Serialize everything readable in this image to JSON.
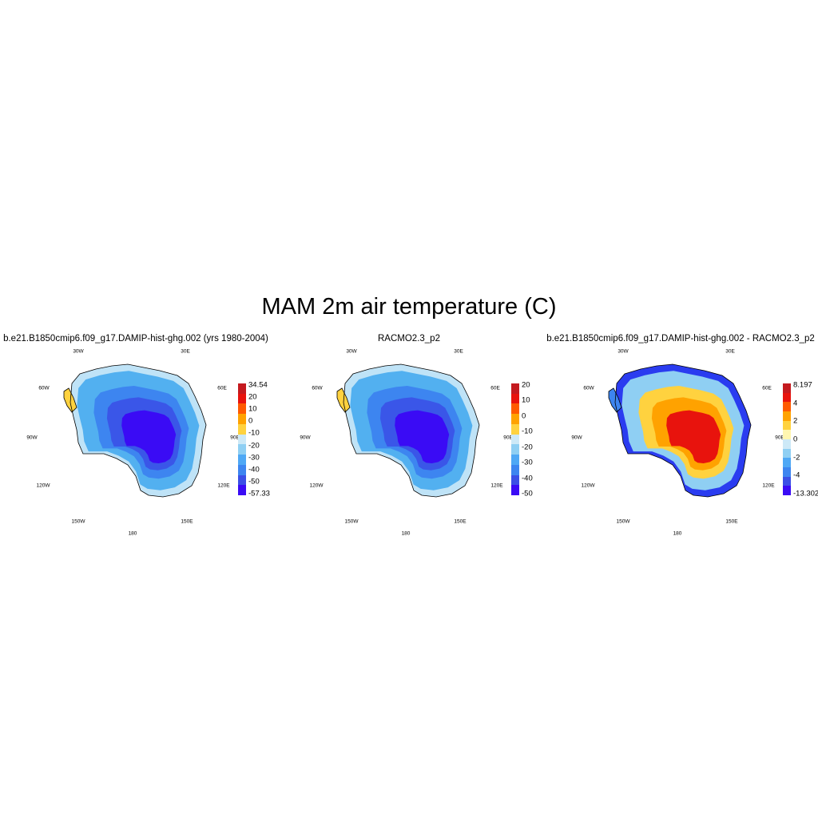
{
  "title": "MAM 2m air temperature (C)",
  "lon_labels": {
    "w30": "30W",
    "e30": "30E",
    "w60": "60W",
    "e60": "60E",
    "w90": "90W",
    "e90": "90E",
    "w120": "120W",
    "e120": "120E",
    "w150": "150W",
    "e150": "150E",
    "d180": "180"
  },
  "panels": [
    {
      "id": "model",
      "title": "b.e21.B1850cmip6.f09_g17.DAMIP-hist-ghg.002 (yrs 1980-2004)",
      "colorbar": {
        "colors": [
          "#3a0bf5",
          "#3b4fe6",
          "#3d85f0",
          "#4fa8f5",
          "#8fcff3",
          "#cde9f7",
          "#ffd23f",
          "#ffa200",
          "#ff5a00",
          "#e8130d",
          "#c41a1f"
        ],
        "labels": [
          "34.54",
          "20",
          "10",
          "0",
          "-10",
          "-20",
          "-30",
          "-40",
          "-50",
          "-57.33"
        ]
      },
      "map_colors": {
        "edge": "#bfe3f7",
        "outer": "#52b0f0",
        "mid": "#3d85f0",
        "inner": "#3a56e8",
        "core": "#3a0bf5",
        "peninsula": "#ffd23f"
      }
    },
    {
      "id": "obs",
      "title": "RACMO2.3_p2",
      "colorbar": {
        "colors": [
          "#3a0bf5",
          "#3b4fe6",
          "#3d85f0",
          "#4fa8f5",
          "#8fcff3",
          "#cde9f7",
          "#ffd23f",
          "#ffa200",
          "#ff5a00",
          "#e8130d",
          "#c41a1f"
        ],
        "labels": [
          "20",
          "10",
          "0",
          "-10",
          "-20",
          "-30",
          "-40",
          "-50"
        ]
      },
      "map_colors": {
        "edge": "#bfe3f7",
        "outer": "#52b0f0",
        "mid": "#3d85f0",
        "inner": "#3a56e8",
        "core": "#3a0bf5",
        "peninsula": "#ffd23f"
      }
    },
    {
      "id": "diff",
      "title": "b.e21.B1850cmip6.f09_g17.DAMIP-hist-ghg.002 - RACMO2.3_p2",
      "colorbar": {
        "colors": [
          "#3a0bf5",
          "#3b4fe6",
          "#3d85f0",
          "#4fa8f5",
          "#8fcff3",
          "#cde9f7",
          "#fff6b0",
          "#ffd23f",
          "#ffa200",
          "#ff5a00",
          "#e8130d",
          "#c41a1f"
        ],
        "labels": [
          "8.197",
          "4",
          "2",
          "0",
          "-2",
          "-4",
          "-13.302"
        ]
      },
      "map_colors": {
        "edge": "#2a3cf0",
        "outer": "#8fcff3",
        "mid": "#ffd23f",
        "inner": "#ffa200",
        "core": "#e8130d",
        "peninsula": "#3d85f0"
      }
    }
  ]
}
